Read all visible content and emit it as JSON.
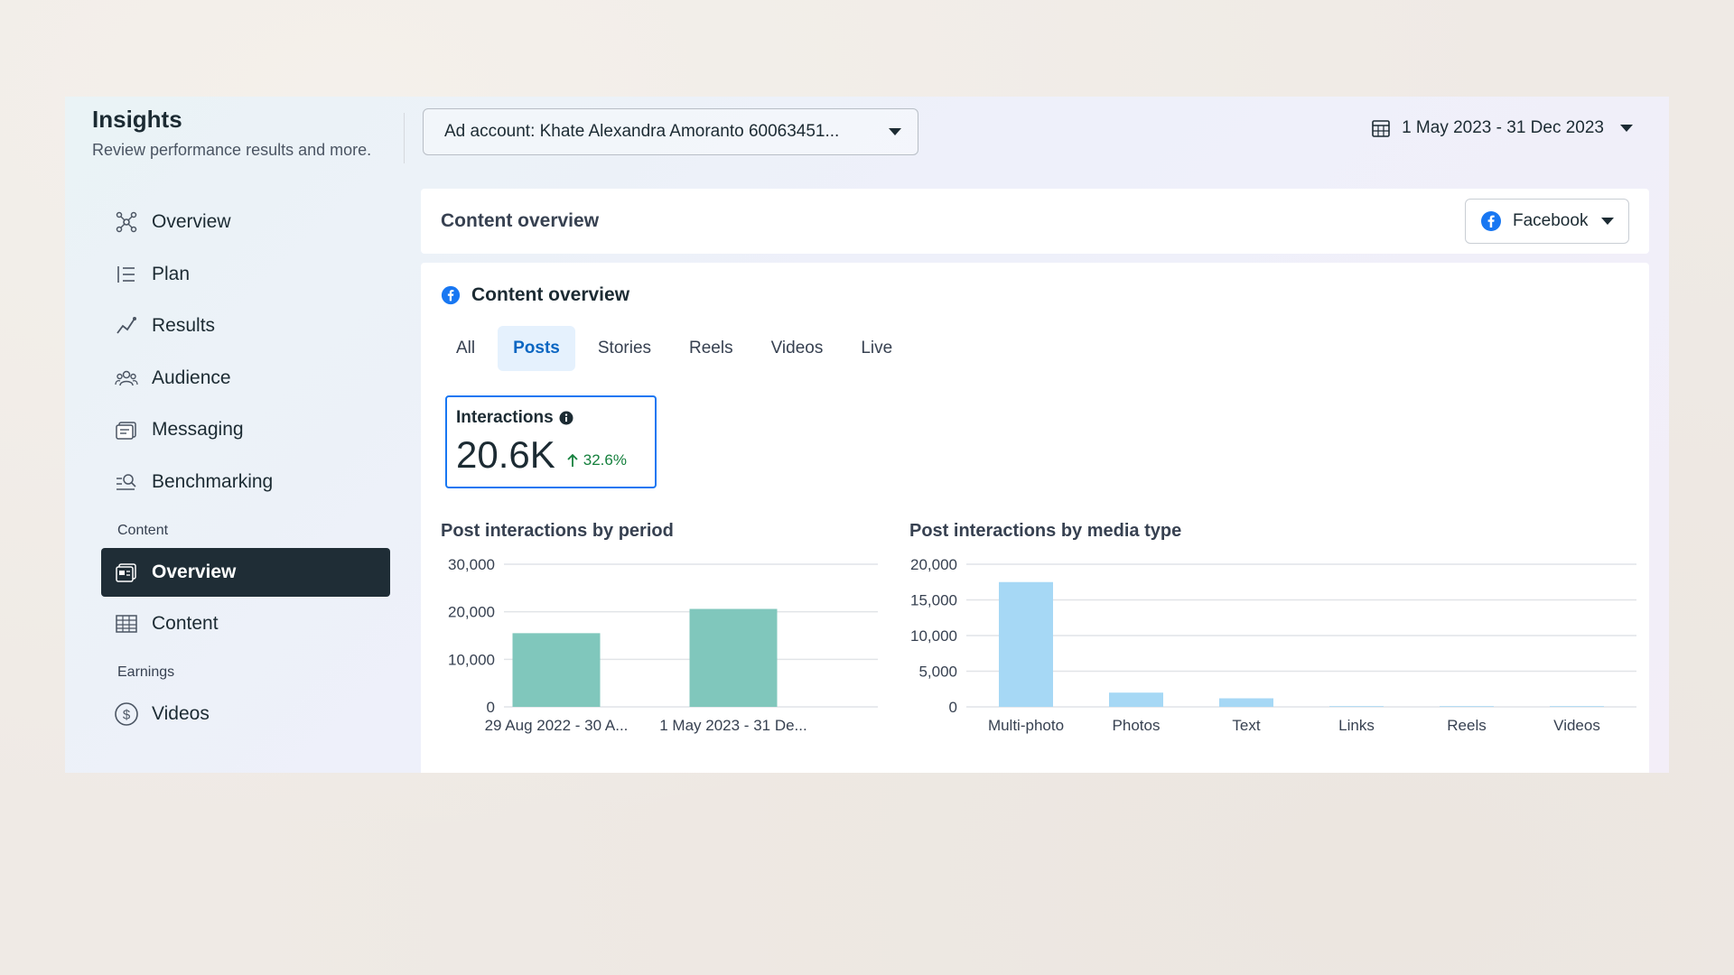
{
  "header": {
    "title": "Insights",
    "subtitle": "Review performance results and more.",
    "ad_account": "Ad account: Khate Alexandra Amoranto 60063451...",
    "date_range": "1 May 2023 - 31 Dec 2023"
  },
  "sidebar": {
    "items": [
      {
        "label": "Overview",
        "icon": "overview-icon"
      },
      {
        "label": "Plan",
        "icon": "plan-icon"
      },
      {
        "label": "Results",
        "icon": "results-icon"
      },
      {
        "label": "Audience",
        "icon": "audience-icon"
      },
      {
        "label": "Messaging",
        "icon": "messaging-icon"
      },
      {
        "label": "Benchmarking",
        "icon": "benchmarking-icon"
      }
    ],
    "content_section": "Content",
    "content_items": [
      {
        "label": "Overview",
        "icon": "content-overview-icon",
        "active": true
      },
      {
        "label": "Content",
        "icon": "table-icon"
      }
    ],
    "earnings_section": "Earnings",
    "earnings_items": [
      {
        "label": "Videos",
        "icon": "dollar-icon"
      }
    ]
  },
  "content_top": {
    "title": "Content overview",
    "platform": "Facebook"
  },
  "content_main": {
    "title": "Content overview",
    "tabs": [
      "All",
      "Posts",
      "Stories",
      "Reels",
      "Videos",
      "Live"
    ],
    "active_tab": "Posts",
    "metric": {
      "label": "Interactions",
      "value": "20.6K",
      "change": "32.6%"
    }
  },
  "colors": {
    "accent": "#1877f2",
    "active_nav": "#1f2d36",
    "period_bar": "#80c7bc",
    "media_bar": "#a6d8f5"
  },
  "chart_data": [
    {
      "type": "bar",
      "title": "Post interactions by period",
      "categories": [
        "29 Aug 2022 - 30 A...",
        "1 May 2023 - 31 De..."
      ],
      "values": [
        15500,
        20600
      ],
      "yticks": [
        "0",
        "10,000",
        "20,000",
        "30,000"
      ],
      "ylim": [
        0,
        30000
      ],
      "grid": true
    },
    {
      "type": "bar",
      "title": "Post interactions by media type",
      "categories": [
        "Multi-photo",
        "Photos",
        "Text",
        "Links",
        "Reels",
        "Videos"
      ],
      "values": [
        17500,
        2000,
        1200,
        100,
        100,
        100
      ],
      "yticks": [
        "0",
        "5,000",
        "10,000",
        "15,000",
        "20,000"
      ],
      "ylim": [
        0,
        20000
      ],
      "grid": true
    }
  ]
}
